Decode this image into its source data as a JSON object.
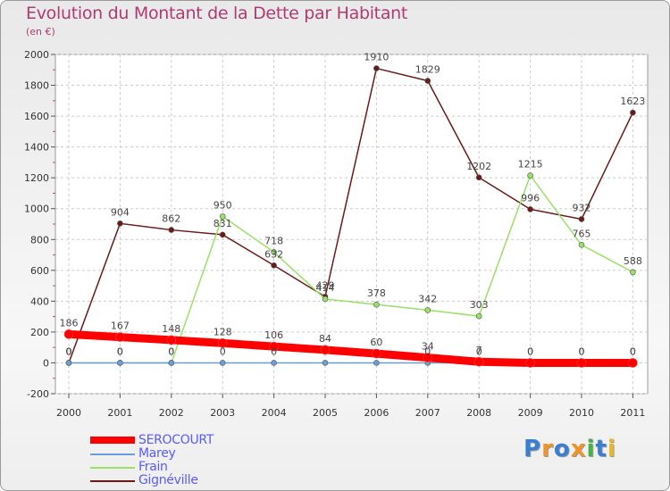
{
  "chart_data": {
    "type": "line",
    "title": "Evolution du Montant de la Dette par Habitant",
    "subtitle": "(en €)",
    "categories": [
      "2000",
      "2001",
      "2002",
      "2003",
      "2004",
      "2005",
      "2006",
      "2007",
      "2008",
      "2009",
      "2010",
      "2011"
    ],
    "ylim": [
      -200,
      2000
    ],
    "yticks": [
      -200,
      0,
      200,
      400,
      600,
      800,
      1000,
      1200,
      1400,
      1600,
      1800,
      2000
    ],
    "grid": true,
    "legend_position": "bottom-left",
    "series": [
      {
        "name": "SEROCOURT",
        "color": "#ff0000",
        "values": [
          186,
          167,
          148,
          128,
          106,
          84,
          60,
          34,
          7,
          0,
          0,
          0
        ],
        "labels": [
          "186",
          "167",
          "148",
          "128",
          "106",
          "84",
          "60",
          "34",
          "7",
          "0",
          "0",
          "0"
        ]
      },
      {
        "name": "Marey",
        "color": "#6a9ed8",
        "values": [
          0,
          0,
          0,
          0,
          0,
          0,
          0,
          0,
          0,
          0,
          0,
          0
        ],
        "labels": [
          "0",
          "0",
          "0",
          "0",
          "0",
          "",
          "",
          "0",
          "0",
          "0",
          "0",
          "0"
        ]
      },
      {
        "name": "Frain",
        "color": "#99e066",
        "values": [
          0,
          0,
          0,
          950,
          718,
          414,
          378,
          342,
          303,
          1215,
          765,
          588
        ],
        "labels": [
          "0",
          "0",
          "0",
          "950",
          "718",
          "414",
          "378",
          "342",
          "303",
          "1215",
          "765",
          "588"
        ]
      },
      {
        "name": "Gignéville",
        "color": "#6b1a1a",
        "values": [
          0,
          904,
          862,
          831,
          632,
          429,
          1910,
          1829,
          1202,
          996,
          932,
          1623
        ],
        "labels": [
          "0",
          "904",
          "862",
          "831",
          "632",
          "429",
          "1910",
          "1829",
          "1202",
          "996",
          "932",
          "1623"
        ]
      }
    ]
  },
  "logo": {
    "letters": [
      "P",
      "r",
      "o",
      "x",
      "i",
      "t",
      "i"
    ],
    "colors": [
      "#3b7fd4",
      "#f0932b",
      "#3b7fd4",
      "#f0932b",
      "#47b347",
      "#3b7fd4",
      "#e8b82a"
    ]
  }
}
